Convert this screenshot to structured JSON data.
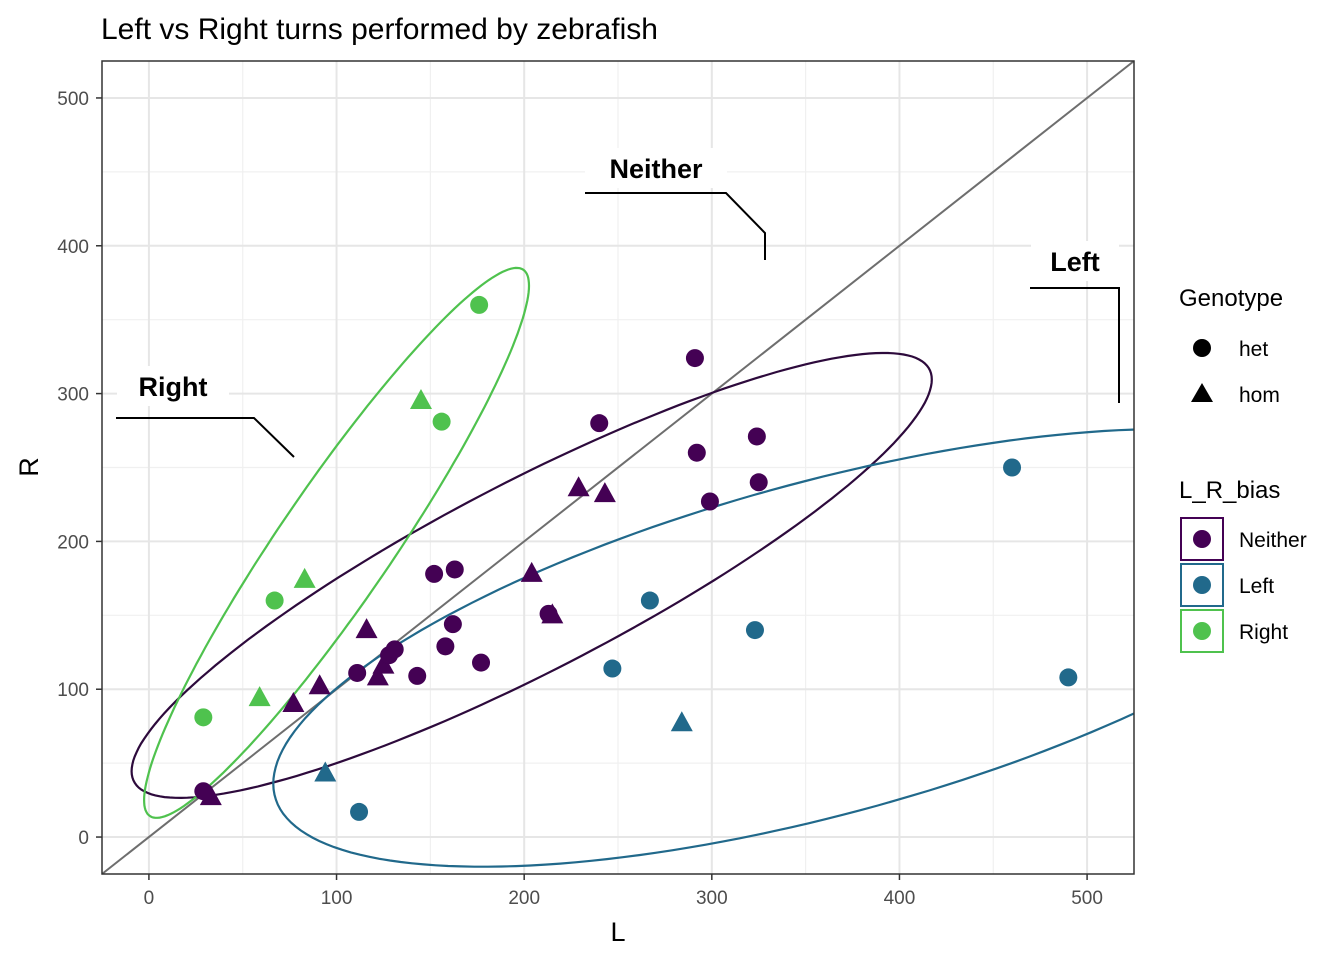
{
  "chart_data": {
    "type": "scatter",
    "title": "Left vs Right turns performed by zebrafish",
    "xlabel": "L",
    "ylabel": "R",
    "xlim": [
      -25,
      525
    ],
    "ylim": [
      -25,
      525
    ],
    "xticks": [
      0,
      100,
      200,
      300,
      400,
      500
    ],
    "yticks": [
      0,
      100,
      200,
      300,
      400,
      500
    ],
    "grid": true,
    "reference_line": "y = x",
    "legends": {
      "shape": {
        "title": "Genotype",
        "items": [
          {
            "label": "het",
            "shape": "circle"
          },
          {
            "label": "hom",
            "shape": "triangle"
          }
        ]
      },
      "color": {
        "title": "L_R_bias",
        "items": [
          {
            "label": "Neither",
            "color": "#440154"
          },
          {
            "label": "Left",
            "color": "#21698b"
          },
          {
            "label": "Right",
            "color": "#4fc24e"
          }
        ]
      },
      "placement": "right"
    },
    "annotations": [
      {
        "text": "Neither",
        "group": "Neither"
      },
      {
        "text": "Left",
        "group": "Left"
      },
      {
        "text": "Right",
        "group": "Right"
      }
    ],
    "ellipses": [
      {
        "group": "Neither",
        "color": "#2d0a3c",
        "center": [
          204,
          177
        ],
        "rx": 254,
        "ry": 60,
        "angle_deg": 34
      },
      {
        "group": "Left",
        "color": "#21698b",
        "center": [
          360,
          128
        ],
        "rx": 310,
        "ry": 110,
        "angle_deg": 20
      },
      {
        "group": "Right",
        "color": "#4fc24e",
        "center": [
          100,
          199
        ],
        "rx": 210,
        "ry": 32,
        "angle_deg": 62
      }
    ],
    "series": [
      {
        "name": "Neither",
        "color": "#440154",
        "points": [
          {
            "x": 29,
            "y": 31,
            "g": "het"
          },
          {
            "x": 33,
            "y": 27,
            "g": "hom"
          },
          {
            "x": 77,
            "y": 90,
            "g": "hom"
          },
          {
            "x": 91,
            "y": 102,
            "g": "hom"
          },
          {
            "x": 111,
            "y": 111,
            "g": "het"
          },
          {
            "x": 116,
            "y": 140,
            "g": "hom"
          },
          {
            "x": 122,
            "y": 108,
            "g": "hom"
          },
          {
            "x": 125,
            "y": 116,
            "g": "hom"
          },
          {
            "x": 128,
            "y": 123,
            "g": "het"
          },
          {
            "x": 131,
            "y": 127,
            "g": "het"
          },
          {
            "x": 143,
            "y": 109,
            "g": "het"
          },
          {
            "x": 152,
            "y": 178,
            "g": "het"
          },
          {
            "x": 158,
            "y": 129,
            "g": "het"
          },
          {
            "x": 162,
            "y": 144,
            "g": "het"
          },
          {
            "x": 163,
            "y": 181,
            "g": "het"
          },
          {
            "x": 177,
            "y": 118,
            "g": "het"
          },
          {
            "x": 204,
            "y": 178,
            "g": "hom"
          },
          {
            "x": 213,
            "y": 151,
            "g": "het"
          },
          {
            "x": 215,
            "y": 150,
            "g": "hom"
          },
          {
            "x": 229,
            "y": 236,
            "g": "hom"
          },
          {
            "x": 240,
            "y": 280,
            "g": "het"
          },
          {
            "x": 243,
            "y": 232,
            "g": "hom"
          },
          {
            "x": 291,
            "y": 324,
            "g": "het"
          },
          {
            "x": 292,
            "y": 260,
            "g": "het"
          },
          {
            "x": 299,
            "y": 227,
            "g": "het"
          },
          {
            "x": 324,
            "y": 271,
            "g": "het"
          },
          {
            "x": 325,
            "y": 240,
            "g": "het"
          }
        ]
      },
      {
        "name": "Left",
        "color": "#21698b",
        "points": [
          {
            "x": 94,
            "y": 43,
            "g": "hom"
          },
          {
            "x": 112,
            "y": 17,
            "g": "het"
          },
          {
            "x": 247,
            "y": 114,
            "g": "het"
          },
          {
            "x": 267,
            "y": 160,
            "g": "het"
          },
          {
            "x": 284,
            "y": 77,
            "g": "hom"
          },
          {
            "x": 323,
            "y": 140,
            "g": "het"
          },
          {
            "x": 460,
            "y": 250,
            "g": "het"
          },
          {
            "x": 490,
            "y": 108,
            "g": "het"
          }
        ]
      },
      {
        "name": "Right",
        "color": "#4fc24e",
        "points": [
          {
            "x": 29,
            "y": 81,
            "g": "het"
          },
          {
            "x": 59,
            "y": 94,
            "g": "hom"
          },
          {
            "x": 67,
            "y": 160,
            "g": "het"
          },
          {
            "x": 83,
            "y": 174,
            "g": "hom"
          },
          {
            "x": 145,
            "y": 295,
            "g": "hom"
          },
          {
            "x": 156,
            "y": 281,
            "g": "het"
          },
          {
            "x": 176,
            "y": 360,
            "g": "het"
          }
        ]
      }
    ]
  }
}
